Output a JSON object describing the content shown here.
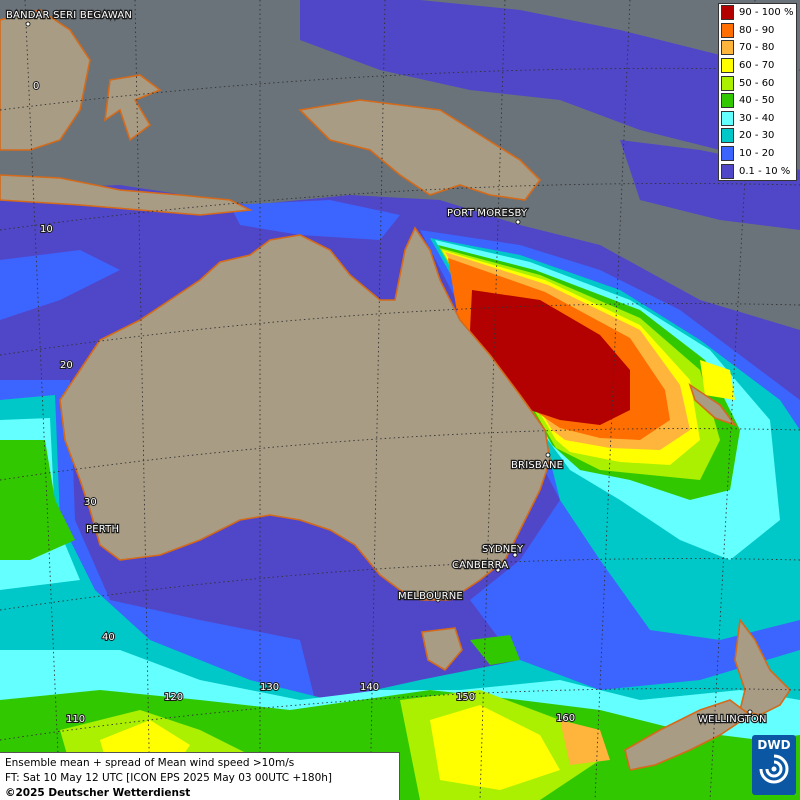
{
  "map": {
    "cities": [
      {
        "id": "bandar",
        "name": "BANDAR SERI BEGAWAN"
      },
      {
        "id": "port_moresby",
        "name": "PORT MORESBY"
      },
      {
        "id": "brisbane",
        "name": "BRISBANE"
      },
      {
        "id": "perth",
        "name": "PERTH"
      },
      {
        "id": "sydney",
        "name": "SYDNEY"
      },
      {
        "id": "canberra",
        "name": "CANBERRA"
      },
      {
        "id": "melbourne",
        "name": "MELBOURNE"
      },
      {
        "id": "wellington",
        "name": "WELLINGTON"
      }
    ],
    "lat_labels": [
      "0",
      "10",
      "20",
      "30",
      "40"
    ],
    "lon_labels": [
      "110",
      "120",
      "130",
      "140",
      "150",
      "160"
    ]
  },
  "legend": {
    "items": [
      {
        "label": "90 - 100 %",
        "color": "#b30000"
      },
      {
        "label": "80 - 90",
        "color": "#ff6e00"
      },
      {
        "label": "70 - 80",
        "color": "#ffb43c"
      },
      {
        "label": "60 - 70",
        "color": "#ffff00"
      },
      {
        "label": "50 - 60",
        "color": "#aaf000"
      },
      {
        "label": "40 - 50",
        "color": "#32c800"
      },
      {
        "label": "30 - 40",
        "color": "#64ffff"
      },
      {
        "label": "20 - 30",
        "color": "#00c8c8"
      },
      {
        "label": "10 - 20",
        "color": "#3c64ff"
      },
      {
        "label": "0.1 - 10 %",
        "color": "#5046c8"
      }
    ]
  },
  "info": {
    "line1": "Ensemble mean + spread of Mean wind speed >10m/s",
    "line2": "FT: Sat 10 May 12 UTC [ICON EPS 2025 May 03 00UTC +180h]",
    "copyright": "©2025 Deutscher Wetterdienst"
  },
  "logo": {
    "text": "DWD"
  }
}
